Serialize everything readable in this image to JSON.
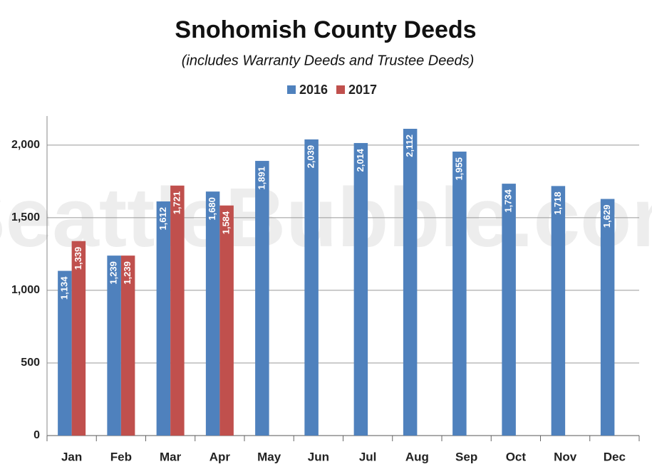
{
  "chart_data": {
    "type": "bar",
    "title": "Snohomish County Deeds",
    "subtitle": "(includes Warranty Deeds and Trustee Deeds)",
    "watermark": "SeattleBubble.com",
    "categories": [
      "Jan",
      "Feb",
      "Mar",
      "Apr",
      "May",
      "Jun",
      "Jul",
      "Aug",
      "Sep",
      "Oct",
      "Nov",
      "Dec"
    ],
    "series": [
      {
        "name": "2016",
        "color": "#4f81bd",
        "values": [
          1134,
          1239,
          1612,
          1680,
          1891,
          2039,
          2014,
          2112,
          1955,
          1734,
          1718,
          1629
        ],
        "value_labels": [
          "1,134",
          "1,239",
          "1,612",
          "1,680",
          "1,891",
          "2,039",
          "2,014",
          "2,112",
          "1,955",
          "1,734",
          "1,718",
          "1,629"
        ]
      },
      {
        "name": "2017",
        "color": "#c0504d",
        "values": [
          1339,
          1239,
          1721,
          1584,
          null,
          null,
          null,
          null,
          null,
          null,
          null,
          null
        ],
        "value_labels": [
          "1,339",
          "1,239",
          "1,721",
          "1,584",
          null,
          null,
          null,
          null,
          null,
          null,
          null,
          null
        ]
      }
    ],
    "ylim": [
      0,
      2200
    ],
    "yticks": [
      0,
      500,
      {
        "value": 1000,
        "label": "1,000"
      },
      {
        "value": 1500,
        "label": "1,500"
      },
      {
        "value": 2000,
        "label": "2,000"
      }
    ],
    "grid": true,
    "legend": "top"
  }
}
